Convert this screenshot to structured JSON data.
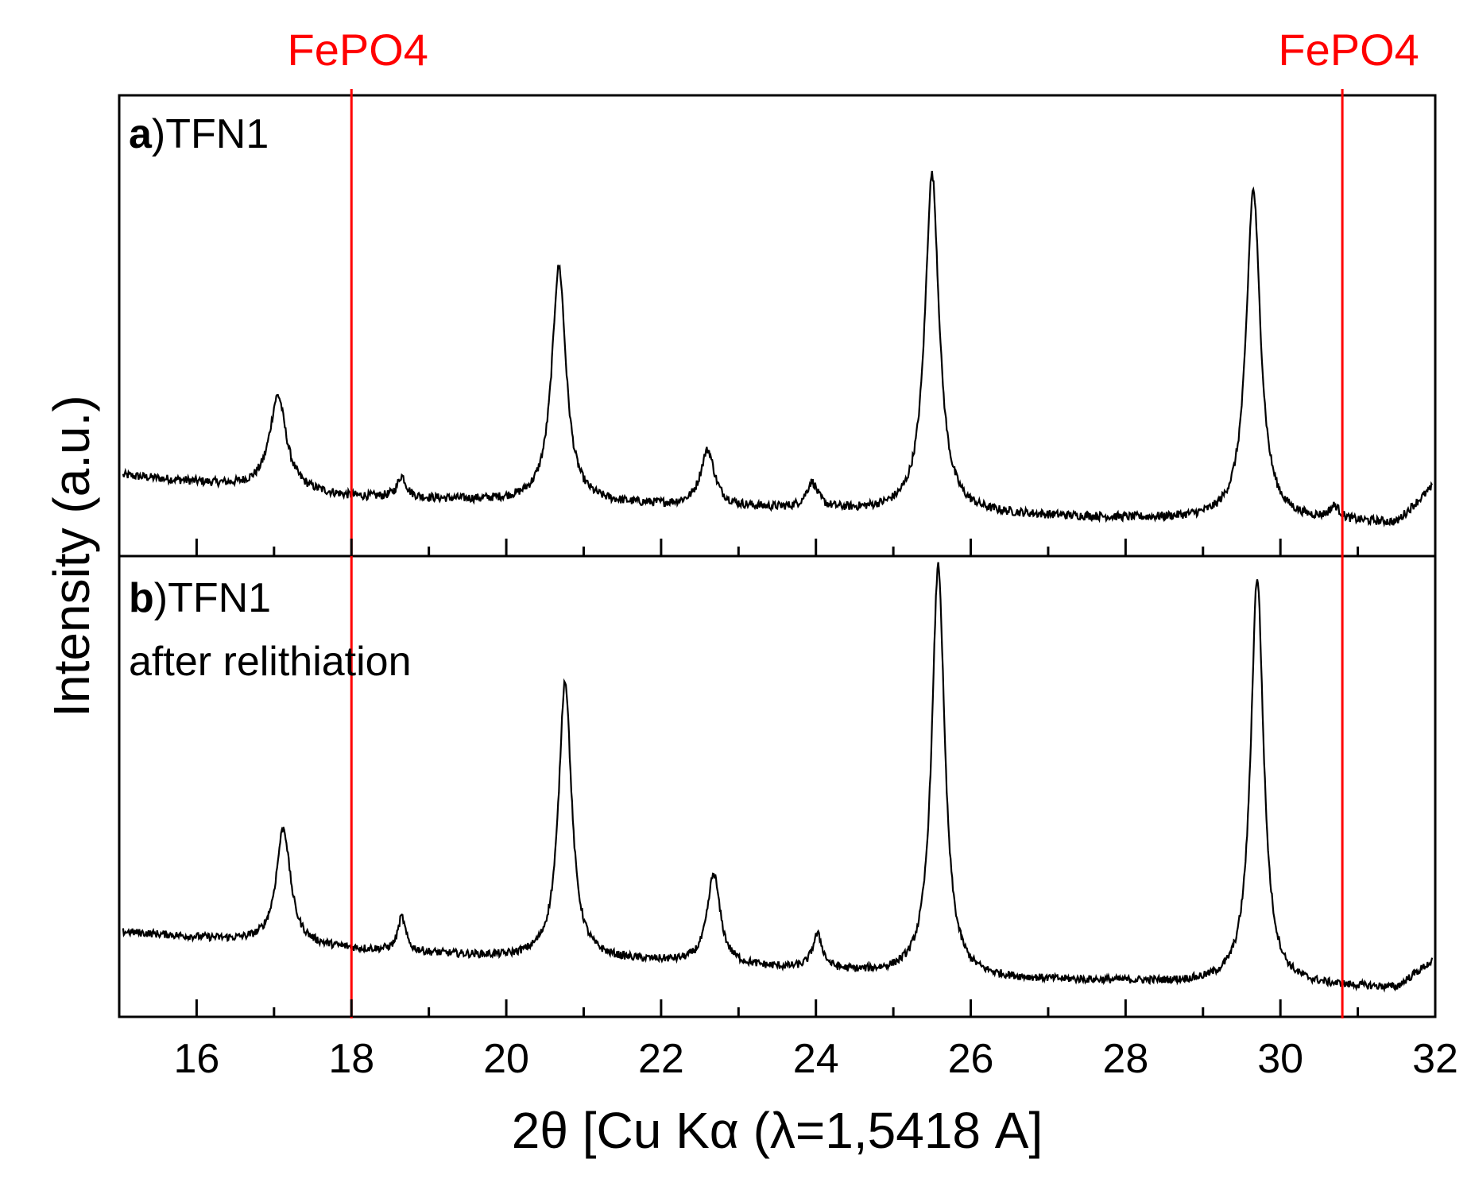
{
  "chart_data": {
    "type": "line",
    "title": "",
    "xlabel": "2θ [Cu Kα (λ=1,5418 A]",
    "ylabel": "Intensity (a.u.)",
    "xlim": [
      15,
      32
    ],
    "x_ticks": [
      16,
      18,
      20,
      22,
      24,
      26,
      28,
      30,
      32
    ],
    "y_ticks_shown": false,
    "reference_lines": [
      {
        "label": "FePO4",
        "x": 18.0,
        "color": "#ff0000"
      },
      {
        "label": "FePO4",
        "x": 30.8,
        "color": "#ff0000"
      }
    ],
    "panels": [
      {
        "label_bold": "a",
        "label_text": ")TFN1",
        "subtitle": "",
        "ylim": [
          0,
          1
        ],
        "baseline": [
          [
            15.1,
            0.15
          ],
          [
            18,
            0.1
          ],
          [
            20,
            0.09
          ],
          [
            22,
            0.08
          ],
          [
            24,
            0.07
          ],
          [
            26,
            0.06
          ],
          [
            28,
            0.05
          ],
          [
            30,
            0.045
          ],
          [
            31.5,
            0.04
          ],
          [
            31.95,
            0.12
          ]
        ],
        "peaks": [
          {
            "x": 17.05,
            "height": 0.22,
            "width": 0.13
          },
          {
            "x": 18.65,
            "height": 0.05,
            "width": 0.07
          },
          {
            "x": 20.68,
            "height": 0.55,
            "width": 0.11
          },
          {
            "x": 22.6,
            "height": 0.13,
            "width": 0.11
          },
          {
            "x": 23.95,
            "height": 0.06,
            "width": 0.09
          },
          {
            "x": 25.5,
            "height": 0.79,
            "width": 0.11
          },
          {
            "x": 29.65,
            "height": 0.77,
            "width": 0.11
          },
          {
            "x": 30.7,
            "height": 0.03,
            "width": 0.08
          }
        ],
        "noise": 0.02
      },
      {
        "label_bold": "b",
        "label_text": ")TFN1",
        "subtitle": "after relithiation",
        "ylim": [
          0,
          1
        ],
        "baseline": [
          [
            15.1,
            0.16
          ],
          [
            18,
            0.12
          ],
          [
            20,
            0.1
          ],
          [
            22,
            0.09
          ],
          [
            24,
            0.07
          ],
          [
            26,
            0.05
          ],
          [
            28,
            0.045
          ],
          [
            30,
            0.035
          ],
          [
            31.5,
            0.03
          ],
          [
            31.95,
            0.09
          ]
        ],
        "peaks": [
          {
            "x": 17.12,
            "height": 0.27,
            "width": 0.11
          },
          {
            "x": 18.65,
            "height": 0.08,
            "width": 0.06
          },
          {
            "x": 20.76,
            "height": 0.65,
            "width": 0.1
          },
          {
            "x": 22.68,
            "height": 0.21,
            "width": 0.1
          },
          {
            "x": 24.02,
            "height": 0.08,
            "width": 0.08
          },
          {
            "x": 25.58,
            "height": 0.96,
            "width": 0.1
          },
          {
            "x": 29.7,
            "height": 0.95,
            "width": 0.1
          }
        ],
        "noise": 0.018
      }
    ]
  }
}
